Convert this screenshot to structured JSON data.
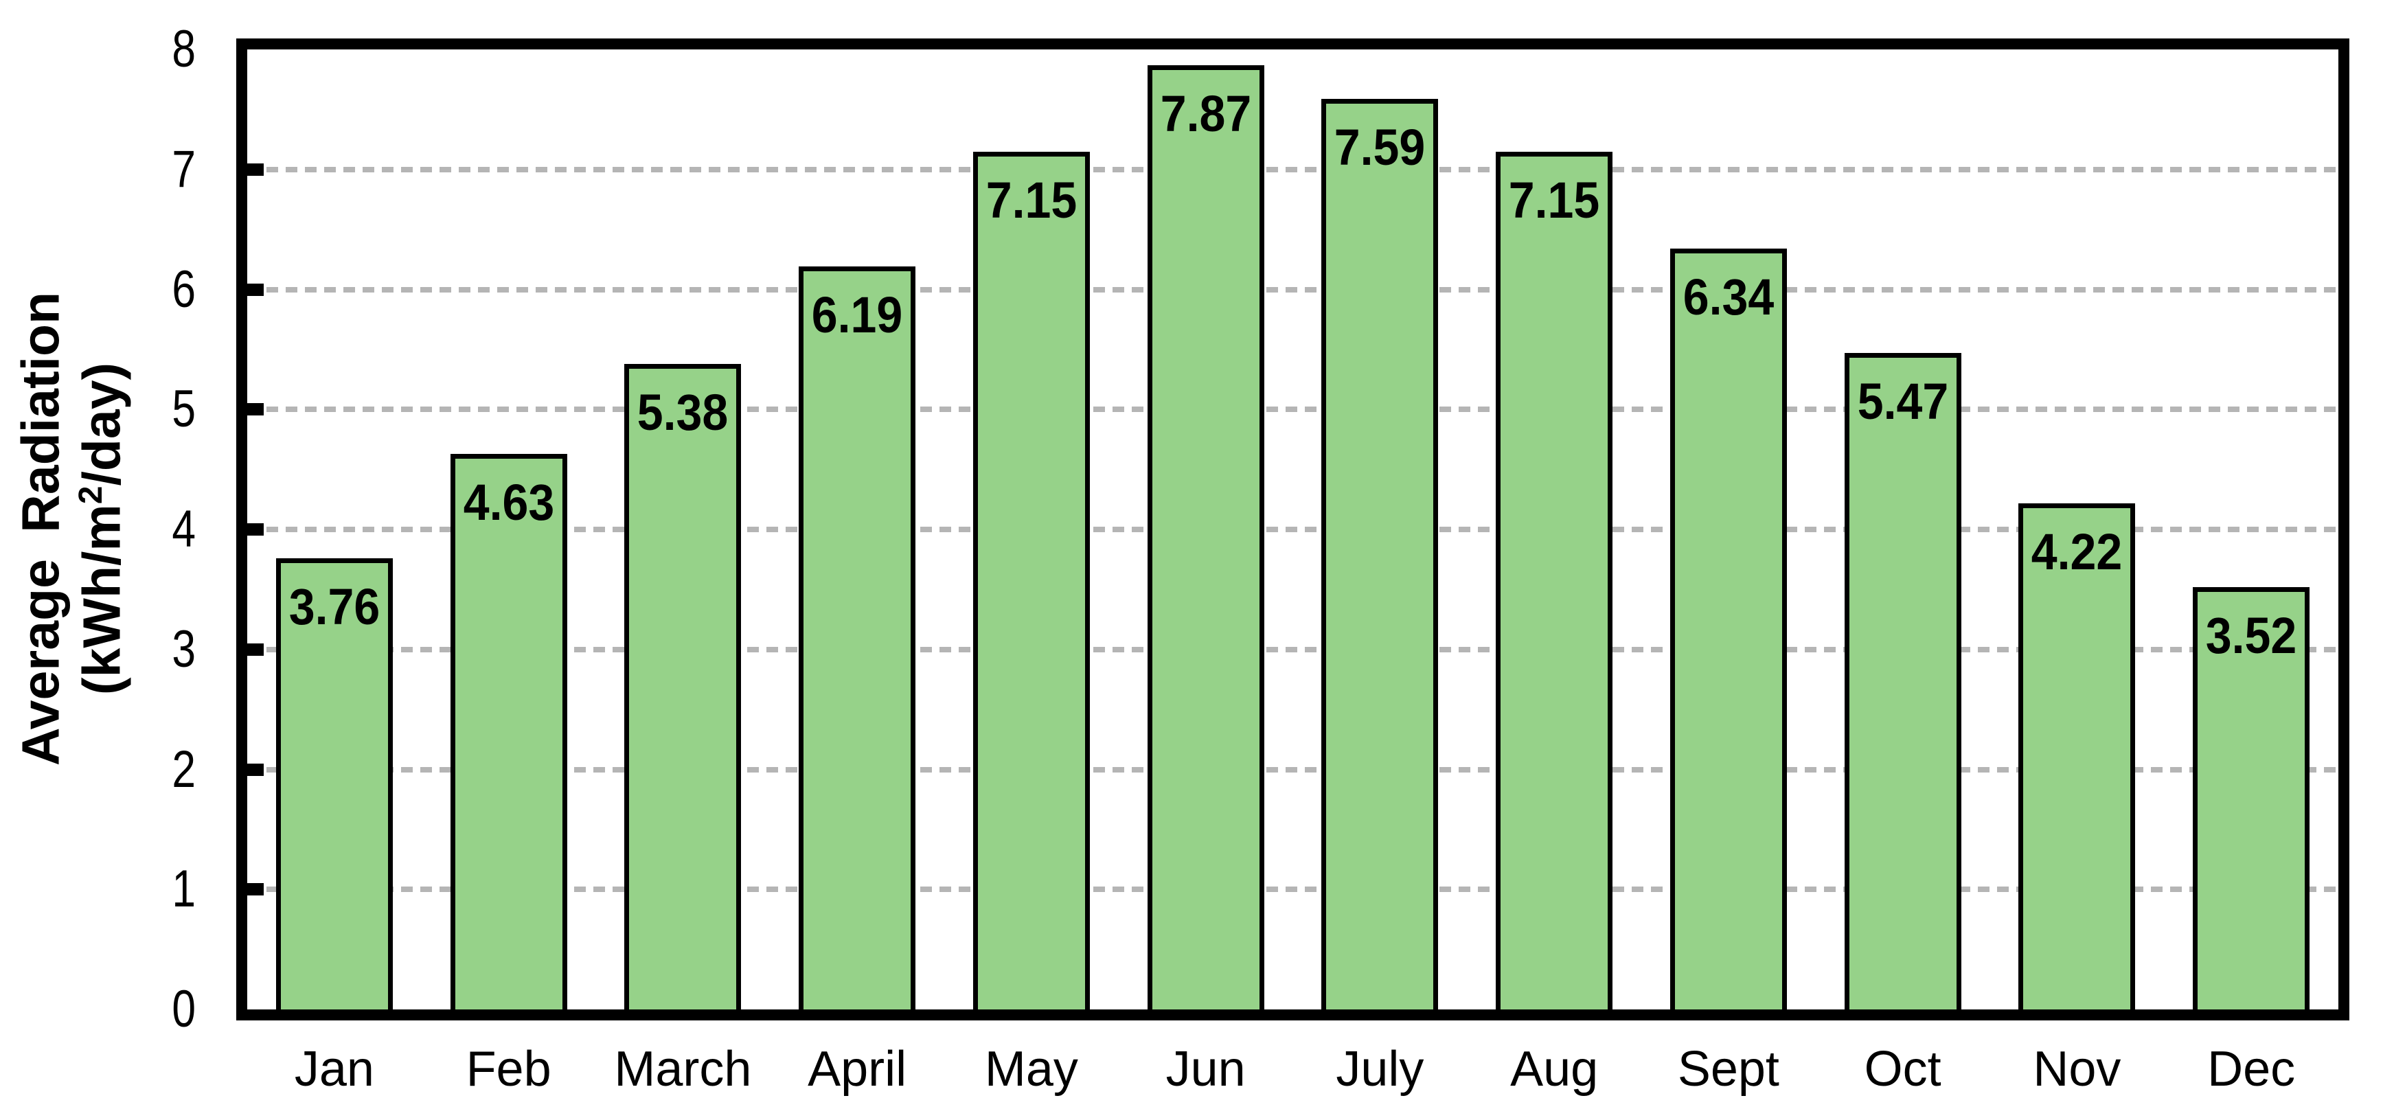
{
  "chart_data": {
    "type": "bar",
    "title": "",
    "categories": [
      "Jan",
      "Feb",
      "March",
      "April",
      "May",
      "Jun",
      "July",
      "Aug",
      "Sept",
      "Oct",
      "Nov",
      "Dec"
    ],
    "values": [
      3.76,
      4.63,
      5.38,
      6.19,
      7.15,
      7.87,
      7.59,
      7.15,
      6.34,
      5.47,
      4.22,
      3.52
    ],
    "value_label_decimals": 2,
    "ylabel": "Average Radiation (kWh/m²/day)",
    "ylabel_line1": "Average Radiation",
    "ylabel_line2_prefix": "(kWh/m",
    "ylabel_line2_sup": "2",
    "ylabel_line2_suffix": "/day)",
    "xlabel": "",
    "ylim": [
      0,
      8
    ],
    "yticks": [
      0,
      1,
      2,
      3,
      4,
      5,
      6,
      7,
      8
    ],
    "grid": {
      "axis": "y",
      "style": "dashed",
      "on_values": [
        1,
        2,
        3,
        4,
        5,
        6,
        7
      ]
    },
    "legend": "none",
    "colors": {
      "bar_fill": "#96d289",
      "bar_border": "#000000",
      "gridline": "#b5b5b5",
      "frame": "#000000",
      "text": "#000000",
      "background": "#ffffff"
    }
  }
}
